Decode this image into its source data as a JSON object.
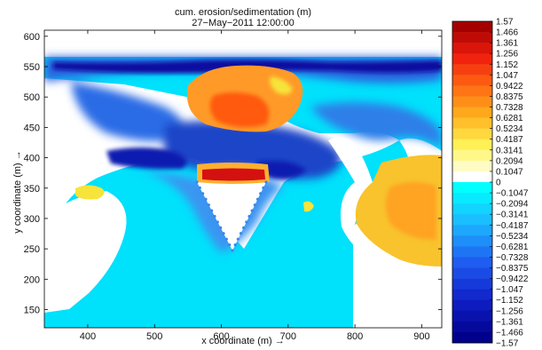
{
  "chart_data": {
    "type": "heatmap",
    "title": "cum. erosion/sedimentation (m)",
    "subtitle": "27−May−2011 12:00:00",
    "xlabel": "x coordinate (m) →",
    "ylabel": "y coordinate (m) →",
    "xlim": [
      335,
      930
    ],
    "ylim": [
      120,
      610
    ],
    "xticks": [
      "400",
      "500",
      "600",
      "700",
      "800",
      "900"
    ],
    "yticks": [
      "150",
      "200",
      "250",
      "300",
      "350",
      "400",
      "450",
      "500",
      "550",
      "600"
    ],
    "colorbar": {
      "labels": [
        "1.57",
        "1.466",
        "1.361",
        "1.256",
        "1.152",
        "1.047",
        "0.9422",
        "0.8375",
        "0.7328",
        "0.6281",
        "0.5234",
        "0.4187",
        "0.3141",
        "0.2094",
        "0.1047",
        "0",
        "−0.1047",
        "−0.2094",
        "−0.3141",
        "−0.4187",
        "−0.5234",
        "−0.6281",
        "−0.7328",
        "−0.8375",
        "−0.9422",
        "−1.047",
        "−1.152",
        "−1.256",
        "−1.361",
        "−1.466",
        "−1.57"
      ],
      "min": -1.57,
      "max": 1.57
    },
    "colors": {
      "deep_erosion": "#00008f",
      "erosion": "#2f6fe0",
      "mild_erosion": "#00e4ff",
      "neutral": "#ffffff",
      "mild_sedimentation": "#f5e23a",
      "sedimentation": "#ff7a10",
      "deep_sedimentation": "#990000"
    },
    "grid": false,
    "legend": "colorbar-right"
  }
}
